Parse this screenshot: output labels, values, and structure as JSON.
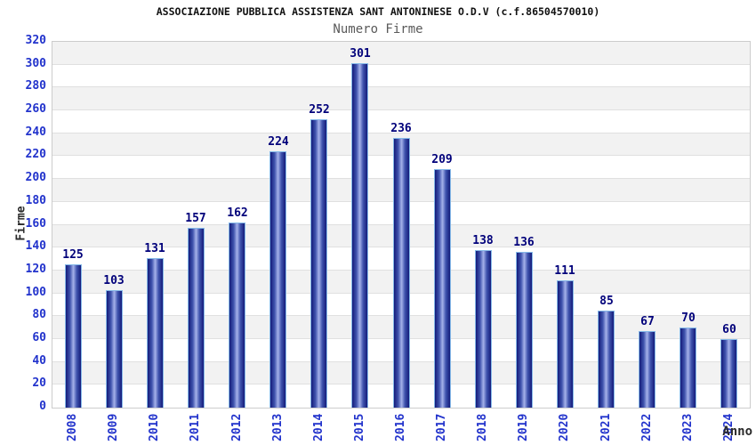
{
  "chart_data": {
    "type": "bar",
    "title": "ASSOCIAZIONE PUBBLICA ASSISTENZA SANT ANTONINESE O.D.V (c.f.86504570010)",
    "subtitle": "Numero Firme",
    "ylabel": "Firme",
    "xlabel": "Anno",
    "categories": [
      "2008",
      "2009",
      "2010",
      "2011",
      "2012",
      "2013",
      "2014",
      "2015",
      "2016",
      "2017",
      "2018",
      "2019",
      "2020",
      "2021",
      "2022",
      "2023",
      "2024"
    ],
    "values": [
      125,
      103,
      131,
      157,
      162,
      224,
      252,
      301,
      236,
      209,
      138,
      136,
      111,
      85,
      67,
      70,
      60
    ],
    "ylim": [
      0,
      320
    ],
    "ytick_step": 20,
    "grid": true,
    "legend": false,
    "colors": {
      "title": "#111111",
      "subtitle": "#5a5a5a",
      "tick_label": "#2233cc",
      "value_label": "#00007a",
      "axis_title": "#2a2a2a",
      "bar_dark": "#141b7a",
      "bar_mid": "#4054ae",
      "bar_light": "#a6b2ea",
      "bar_outline": "#85b9e8",
      "band_gray": "#f2f2f2",
      "band_white": "#ffffff",
      "grid_line": "#e0e0e0",
      "plot_border": "#cccccc"
    }
  }
}
